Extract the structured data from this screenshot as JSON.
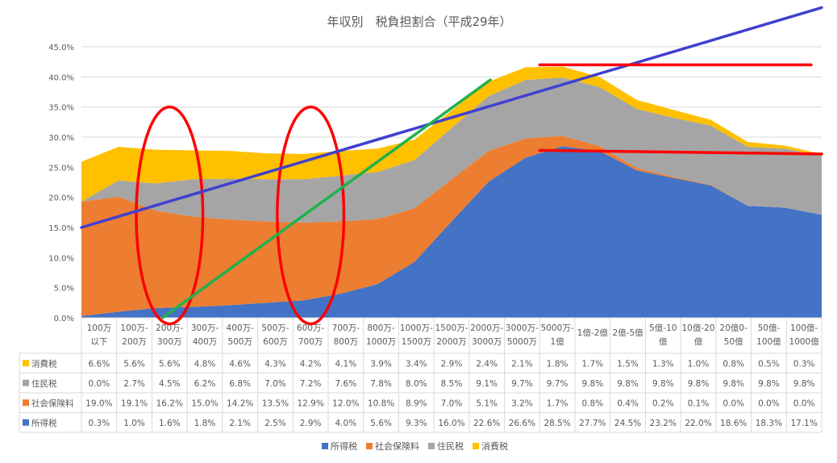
{
  "chart_data": {
    "type": "area",
    "stacked": true,
    "title": "年収別　税負担割合（平成29年）",
    "xlabel": "",
    "ylabel": "",
    "ylim": [
      0,
      45
    ],
    "y_ticks": [
      "0.0%",
      "5.0%",
      "10.0%",
      "15.0%",
      "20.0%",
      "25.0%",
      "30.0%",
      "35.0%",
      "40.0%",
      "45.0%"
    ],
    "grid": true,
    "legend_position": "bottom",
    "categories": [
      [
        "100万",
        "以下"
      ],
      [
        "100万-",
        "200万"
      ],
      [
        "200万-",
        "300万"
      ],
      [
        "300万-",
        "400万"
      ],
      [
        "400万-",
        "500万"
      ],
      [
        "500万-",
        "600万"
      ],
      [
        "600万-",
        "700万"
      ],
      [
        "700万-",
        "800万"
      ],
      [
        "800万-",
        "1000万"
      ],
      [
        "1000万-",
        "1500万"
      ],
      [
        "1500万-",
        "2000万"
      ],
      [
        "2000万-",
        "3000万"
      ],
      [
        "3000万-",
        "5000万"
      ],
      [
        "5000万-",
        "1億"
      ],
      [
        "1億-2億"
      ],
      [
        "2億-5億"
      ],
      [
        "5億-10",
        "億"
      ],
      [
        "10億-20",
        "億"
      ],
      [
        "20億0-",
        "50億"
      ],
      [
        "50億-",
        "100億"
      ],
      [
        "100億-",
        "1000億"
      ]
    ],
    "series": [
      {
        "name": "所得税",
        "color": "#4472C4",
        "values": [
          0.3,
          1.0,
          1.6,
          1.8,
          2.1,
          2.5,
          2.9,
          4.0,
          5.6,
          9.3,
          16.0,
          22.6,
          26.6,
          28.5,
          27.7,
          24.5,
          23.2,
          22.0,
          18.6,
          18.3,
          17.1
        ],
        "labels": [
          "0.3%",
          "1.0%",
          "1.6%",
          "1.8%",
          "2.1%",
          "2.5%",
          "2.9%",
          "4.0%",
          "5.6%",
          "9.3%",
          "16.0%",
          "22.6%",
          "26.6%",
          "28.5%",
          "27.7%",
          "24.5%",
          "23.2%",
          "22.0%",
          "18.6%",
          "18.3%",
          "17.1%"
        ]
      },
      {
        "name": "社会保険料",
        "color": "#ED7D31",
        "values": [
          19.0,
          19.1,
          16.2,
          15.0,
          14.2,
          13.5,
          12.9,
          12.0,
          10.8,
          8.9,
          7.0,
          5.1,
          3.2,
          1.7,
          0.8,
          0.4,
          0.2,
          0.1,
          0.0,
          0.0,
          0.0
        ],
        "labels": [
          "19.0%",
          "19.1%",
          "16.2%",
          "15.0%",
          "14.2%",
          "13.5%",
          "12.9%",
          "12.0%",
          "10.8%",
          "8.9%",
          "7.0%",
          "5.1%",
          "3.2%",
          "1.7%",
          "0.8%",
          "0.4%",
          "0.2%",
          "0.1%",
          "0.0%",
          "0.0%",
          "0.0%"
        ]
      },
      {
        "name": "住民税",
        "color": "#A5A5A5",
        "values": [
          0.0,
          2.7,
          4.5,
          6.2,
          6.8,
          7.0,
          7.2,
          7.6,
          7.8,
          8.0,
          8.5,
          9.1,
          9.7,
          9.7,
          9.8,
          9.8,
          9.8,
          9.8,
          9.8,
          9.8,
          9.8
        ],
        "labels": [
          "0.0%",
          "2.7%",
          "4.5%",
          "6.2%",
          "6.8%",
          "7.0%",
          "7.2%",
          "7.6%",
          "7.8%",
          "8.0%",
          "8.5%",
          "9.1%",
          "9.7%",
          "9.7%",
          "9.8%",
          "9.8%",
          "9.8%",
          "9.8%",
          "9.8%",
          "9.8%",
          "9.8%"
        ]
      },
      {
        "name": "消費税",
        "color": "#FFC000",
        "values": [
          6.6,
          5.6,
          5.6,
          4.8,
          4.6,
          4.3,
          4.2,
          4.1,
          3.9,
          3.4,
          2.9,
          2.4,
          2.1,
          1.8,
          1.7,
          1.5,
          1.3,
          1.0,
          0.8,
          0.5,
          0.3
        ],
        "labels": [
          "6.6%",
          "5.6%",
          "5.6%",
          "4.8%",
          "4.6%",
          "4.3%",
          "4.2%",
          "4.1%",
          "3.9%",
          "3.4%",
          "2.9%",
          "2.4%",
          "2.1%",
          "1.8%",
          "1.7%",
          "1.5%",
          "1.3%",
          "1.0%",
          "0.8%",
          "0.5%",
          "0.3%"
        ]
      }
    ],
    "table_row_order": [
      "消費税",
      "住民税",
      "社会保険料",
      "所得税"
    ],
    "legend_order": [
      "所得税",
      "社会保険料",
      "住民税",
      "消費税"
    ],
    "annotations": {
      "circles": [
        {
          "color": "#FF0000",
          "center_x_category_index": 2.5,
          "center_y": 17.0,
          "x_span_categories": 1.05,
          "y_span": 15.0
        },
        {
          "color": "#FF0000",
          "center_x_category_index": 6.5,
          "center_y": 17.0,
          "x_span_categories": 1.05,
          "y_span": 15.0
        }
      ],
      "lines": [
        {
          "color": "#4040D0",
          "from": [
            0.0,
            15.0
          ],
          "to": [
            21.0,
            51.5
          ]
        },
        {
          "color": "#22B14C",
          "from": [
            2.3,
            0.0
          ],
          "to": [
            11.6,
            39.5
          ]
        },
        {
          "color": "#FF0000",
          "from": [
            13.0,
            42.0
          ],
          "to": [
            20.7,
            42.0
          ]
        },
        {
          "color": "#FF0000",
          "from": [
            13.0,
            27.8
          ],
          "to": [
            21.0,
            27.2
          ]
        }
      ]
    }
  }
}
